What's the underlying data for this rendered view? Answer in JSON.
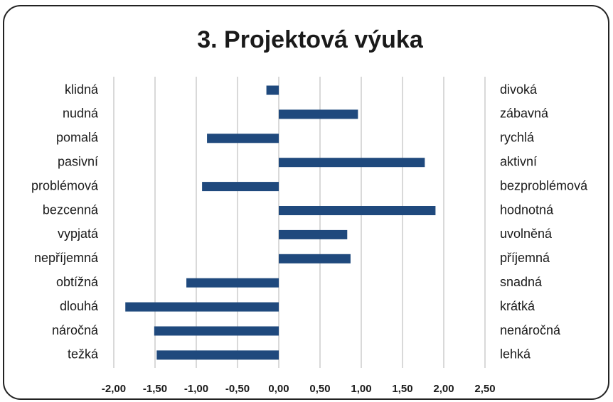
{
  "chart_data": {
    "type": "barh",
    "title": "3. Projektová výuka",
    "categories": [
      "klidná",
      "nudná",
      "pomalá",
      "pasivní",
      "problémová",
      "bezcenná",
      "vypjatá",
      "nepříjemná",
      "obtížná",
      "dlouhá",
      "náročná",
      "težká"
    ],
    "right_labels": [
      "divoká",
      "zábavná",
      "rychlá",
      "aktivní",
      "bezproblémová",
      "hodnotná",
      "uvolněná",
      "příjemná",
      "snadná",
      "krátká",
      "nenáročná",
      "lehká"
    ],
    "values": [
      -0.15,
      0.96,
      -0.87,
      1.77,
      -0.93,
      1.9,
      0.83,
      0.87,
      -1.12,
      -1.86,
      -1.51,
      -1.48
    ],
    "color": "#1f497d",
    "xlim": [
      -2,
      2.5
    ],
    "xticks": [
      {
        "value": -2,
        "label": "-2,00"
      },
      {
        "value": -1.5,
        "label": "-1,50"
      },
      {
        "value": -1,
        "label": "-1,00"
      },
      {
        "value": -0.5,
        "label": "-0,50"
      },
      {
        "value": 0,
        "label": "0,00"
      },
      {
        "value": 0.5,
        "label": "0,50"
      },
      {
        "value": 1,
        "label": "1,00"
      },
      {
        "value": 1.5,
        "label": "1,50"
      },
      {
        "value": 2,
        "label": "2,00"
      },
      {
        "value": 2.5,
        "label": "2,50"
      }
    ],
    "grid": true
  }
}
